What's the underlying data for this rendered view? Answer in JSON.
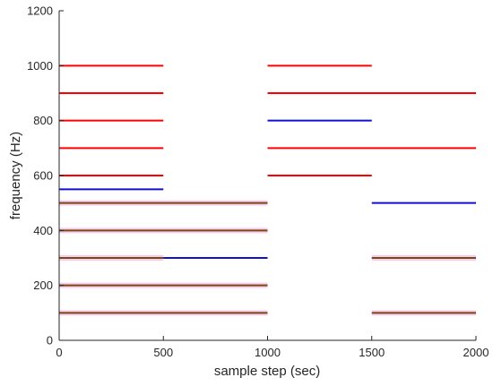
{
  "chart_data": {
    "type": "line",
    "xlabel": "sample step (sec)",
    "ylabel": "frequency (Hz)",
    "xlim": [
      0,
      2000
    ],
    "ylim": [
      0,
      1200
    ],
    "xticks": [
      0,
      500,
      1000,
      1500,
      2000
    ],
    "yticks": [
      0,
      200,
      400,
      600,
      800,
      1000,
      1200
    ],
    "grid": false,
    "colors": {
      "red": "#ff0000",
      "blue": "#1010d0",
      "olive": "#7a4a10",
      "halo": "#f6cdef"
    },
    "segments": [
      {
        "y": 1000,
        "x": [
          0,
          500
        ],
        "color": "red"
      },
      {
        "y": 900,
        "x": [
          0,
          500
        ],
        "color": "red"
      },
      {
        "y": 800,
        "x": [
          0,
          500
        ],
        "color": "red"
      },
      {
        "y": 700,
        "x": [
          0,
          500
        ],
        "color": "red"
      },
      {
        "y": 600,
        "x": [
          0,
          500
        ],
        "color": "red"
      },
      {
        "y": 550,
        "x": [
          0,
          500
        ],
        "color": "blue"
      },
      {
        "y": 500,
        "x": [
          0,
          1000
        ],
        "color": "olive"
      },
      {
        "y": 400,
        "x": [
          0,
          1000
        ],
        "color": "olive"
      },
      {
        "y": 300,
        "x": [
          0,
          500
        ],
        "color": "olive"
      },
      {
        "y": 300,
        "x": [
          500,
          1000
        ],
        "color": "blue"
      },
      {
        "y": 200,
        "x": [
          0,
          1000
        ],
        "color": "olive"
      },
      {
        "y": 100,
        "x": [
          0,
          1000
        ],
        "color": "olive"
      },
      {
        "y": 1000,
        "x": [
          1000,
          1500
        ],
        "color": "red"
      },
      {
        "y": 900,
        "x": [
          1000,
          2000
        ],
        "color": "red"
      },
      {
        "y": 800,
        "x": [
          1000,
          1500
        ],
        "color": "blue"
      },
      {
        "y": 700,
        "x": [
          1000,
          2000
        ],
        "color": "red"
      },
      {
        "y": 600,
        "x": [
          1000,
          1500
        ],
        "color": "red"
      },
      {
        "y": 500,
        "x": [
          1500,
          2000
        ],
        "color": "blue"
      },
      {
        "y": 300,
        "x": [
          1500,
          2000
        ],
        "color": "olive"
      },
      {
        "y": 100,
        "x": [
          1500,
          2000
        ],
        "color": "olive"
      }
    ]
  }
}
